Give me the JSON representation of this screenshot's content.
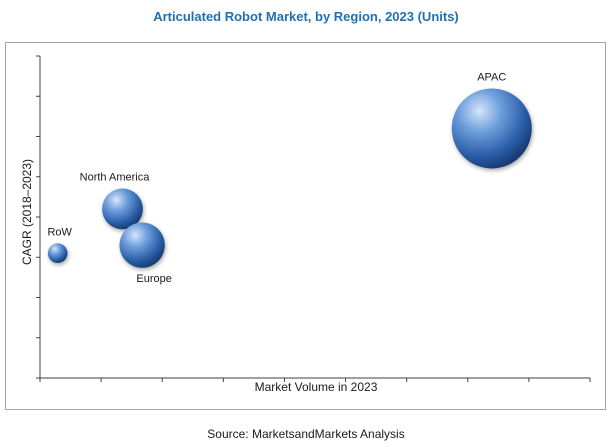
{
  "chart_data": {
    "type": "scatter",
    "title": "Articulated Robot Market, by Region, 2023 (Units)",
    "xlabel": "Market Volume in 2023",
    "ylabel": "CAGR (2018–2023)",
    "xlim": [
      0,
      14
    ],
    "ylim": [
      0,
      8
    ],
    "grid": false,
    "series": [
      {
        "name": "APAC",
        "x": 11.5,
        "y": 6.2,
        "size": 10
      },
      {
        "name": "North America",
        "x": 2.1,
        "y": 4.2,
        "size": 2.6
      },
      {
        "name": "Europe",
        "x": 2.6,
        "y": 3.3,
        "size": 3.2
      },
      {
        "name": "RoW",
        "x": 0.45,
        "y": 3.1,
        "size": 0.6
      }
    ],
    "bubble_color": "#3a6fb3"
  },
  "source": "Source: MarketsandMarkets Analysis"
}
